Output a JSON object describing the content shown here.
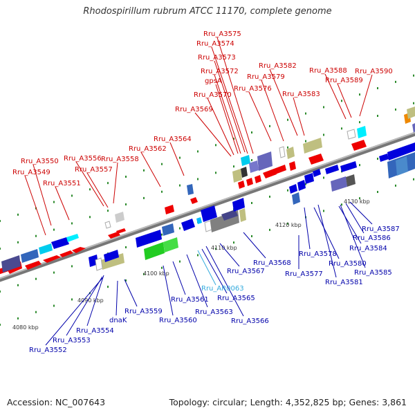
{
  "title": "Rhodospirillum rubrum ATCC 11170, complete genome",
  "footer": {
    "accession": "Accession: NC_007643",
    "topology": "Topology: circular; Length: 4,352,825 bp; Genes: 3,861"
  },
  "colors": {
    "forward_label": "#cc0000",
    "reverse_label": "#0000aa",
    "rna_label": "#33aadd",
    "backbone": "#888888"
  },
  "kbp_ticks": [
    "4080 kbp",
    "4090 kbp",
    "4100 kbp",
    "4110 kbp",
    "4120 kbp",
    "4130 kbp"
  ],
  "forward_labels": [
    "Rru_A3550",
    "Rru_A3549",
    "Rru_A3551",
    "Rru_A3556",
    "Rru_A3557",
    "Rru_A3558",
    "Rru_A3562",
    "Rru_A3564",
    "Rru_A3569",
    "Rru_A3570",
    "gpsA",
    "Rru_A3572",
    "Rru_A3573",
    "Rru_A3574",
    "Rru_A3575",
    "Rru_A3576",
    "Rru_A3579",
    "Rru_A3582",
    "Rru_A3583",
    "Rru_A3588",
    "Rru_A3589",
    "Rru_A3590"
  ],
  "reverse_labels": [
    "Rru_A3552",
    "Rru_A3553",
    "Rru_A3554",
    "dnaK",
    "Rru_A3559",
    "Rru_A3560",
    "Rru_A3561",
    "Rru_A3563",
    "Rru_A3565",
    "Rru_A3566",
    "Rru_A3567",
    "Rru_A3568",
    "Rru_A3577",
    "Rru_A3578",
    "Rru_A3580",
    "Rru_A3581",
    "Rru_A3584",
    "Rru_A3585",
    "Rru_A3586",
    "Rru_A3587"
  ],
  "rna_labels": [
    "Rru_AR0063"
  ]
}
